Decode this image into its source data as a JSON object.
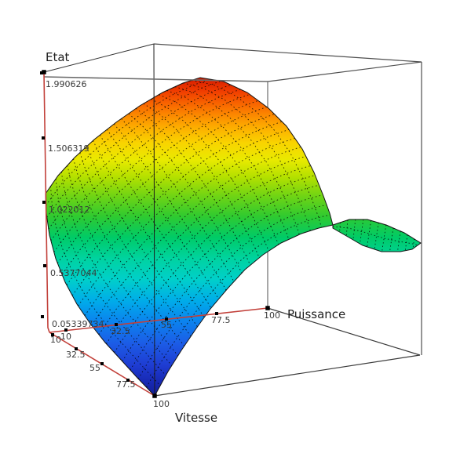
{
  "figure": {
    "background": "#ffffff",
    "axes": {
      "z": {
        "label": "Etat",
        "ticks": [
          "1.990626",
          "1.506319",
          "1.022012",
          "0.5377044",
          "0.05339734"
        ]
      },
      "x": {
        "label": "Puissance",
        "ticks": [
          "10",
          "32.5",
          "55",
          "77.5",
          "100"
        ]
      },
      "y": {
        "label": "Vitesse",
        "ticks": [
          "10",
          "32.5",
          "55",
          "77.5",
          "100"
        ]
      }
    },
    "colors": {
      "axis": "#c2403a",
      "frame": "#4f4f4f",
      "frame_light": "#6a6a6a",
      "frame_dark": "#1c1c1c",
      "mesh": "#000000",
      "tick_mark": "#000000",
      "tick_text": "#3a3a3a",
      "label_text": "#1f1f1f"
    },
    "colormap_stops": [
      [
        0.0,
        "#d61a00"
      ],
      [
        0.042,
        "#f03c00"
      ],
      [
        0.096,
        "#fa7300"
      ],
      [
        0.15,
        "#fda800"
      ],
      [
        0.204,
        "#f9d300"
      ],
      [
        0.259,
        "#e9ea00"
      ],
      [
        0.313,
        "#b3e000"
      ],
      [
        0.372,
        "#70d414"
      ],
      [
        0.436,
        "#2fca30"
      ],
      [
        0.502,
        "#00cb67"
      ],
      [
        0.569,
        "#00d3a0"
      ],
      [
        0.635,
        "#00cfca"
      ],
      [
        0.702,
        "#00ace9"
      ],
      [
        0.766,
        "#0b83ee"
      ],
      [
        0.835,
        "#1c5ce6"
      ],
      [
        0.904,
        "#1e3cd2"
      ],
      [
        0.958,
        "#1728b2"
      ],
      [
        1.0,
        "#121e95"
      ]
    ]
  },
  "chart_data": {
    "type": "surface",
    "title": "",
    "xlabel": "Puissance",
    "ylabel": "Vitesse",
    "zlabel": "Etat",
    "x_ticks": [
      10,
      32.5,
      55,
      77.5,
      100
    ],
    "y_ticks": [
      10,
      32.5,
      55,
      77.5,
      100
    ],
    "z_ticks": [
      0.05339734,
      0.5377044,
      1.022012,
      1.506319,
      1.990626
    ],
    "xlim": [
      10,
      100
    ],
    "ylim": [
      10,
      100
    ],
    "zlim": [
      0.05339734,
      1.990626
    ],
    "colormap": "jet",
    "grid": "dotted-mesh",
    "legend": "none",
    "x": [
      10,
      32.5,
      55,
      77.5,
      100
    ],
    "y": [
      10,
      32.5,
      55,
      77.5,
      100
    ],
    "z_estimated": [
      [
        1.1,
        1.75,
        1.99,
        1.75,
        1.1
      ],
      [
        0.95,
        1.55,
        1.8,
        1.55,
        1.0
      ],
      [
        0.7,
        1.15,
        1.4,
        1.25,
        1.0
      ],
      [
        0.35,
        0.7,
        0.95,
        1.05,
        1.02
      ],
      [
        0.05,
        0.35,
        0.6,
        0.85,
        1.0
      ]
    ]
  }
}
